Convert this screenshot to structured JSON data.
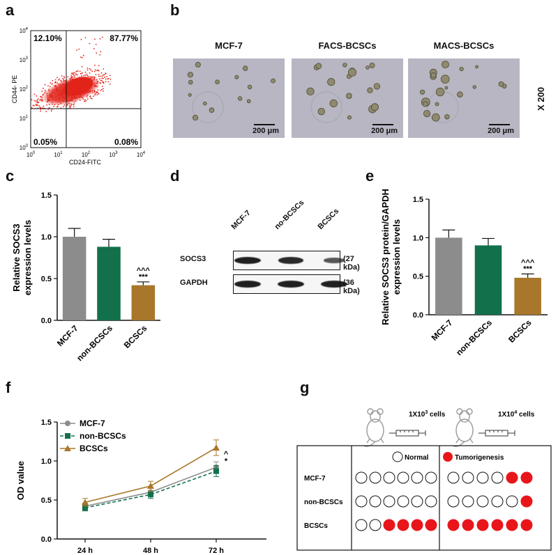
{
  "panels": {
    "a": "a",
    "b": "b",
    "c": "c",
    "d": "d",
    "e": "e",
    "f": "f",
    "g": "g"
  },
  "flow": {
    "quadrants": {
      "ul": "12.10%",
      "ur": "87.77%",
      "ll": "0.05%",
      "lr": "0.08%"
    },
    "xlabel": "CD24-FITC",
    "ylabel": "CD44- PE",
    "ticks": [
      "10^0",
      "10^1",
      "10^2",
      "10^3",
      "10^4"
    ]
  },
  "micro": {
    "titles": [
      "MCF-7",
      "FACS-BCSCs",
      "MACS-BCSCs"
    ],
    "scale_label": "200 μm",
    "magnification": "X 200"
  },
  "chart_data": [
    {
      "panel": "c",
      "type": "bar",
      "categories": [
        "MCF-7",
        "non-BCSCs",
        "BCSCs"
      ],
      "values": [
        1.0,
        0.88,
        0.42
      ],
      "errors": [
        0.1,
        0.09,
        0.04
      ],
      "ylabel": "Relative SOCS3 expression levels",
      "ylim": [
        0,
        1.5
      ],
      "yticks": [
        "0.0",
        "0.5",
        "1.0",
        "1.5"
      ],
      "annotations": [
        "",
        "",
        "^^^\n***"
      ],
      "colors": [
        "#8c8c8c",
        "#12704a",
        "#a8772b"
      ]
    },
    {
      "panel": "e",
      "type": "bar",
      "categories": [
        "MCF-7",
        "non-BCSCs",
        "BCSCs"
      ],
      "values": [
        1.0,
        0.9,
        0.48
      ],
      "errors": [
        0.1,
        0.09,
        0.05
      ],
      "ylabel": "Relative SOCS3 protein/GAPDH expression levels",
      "ylim": [
        0,
        1.5
      ],
      "yticks": [
        "0.0",
        "0.5",
        "1.0",
        "1.5"
      ],
      "annotations": [
        "",
        "",
        "^^^\n***"
      ],
      "colors": [
        "#8c8c8c",
        "#12704a",
        "#a8772b"
      ]
    },
    {
      "panel": "f",
      "type": "line",
      "categories": [
        "24 h",
        "48 h",
        "72 h"
      ],
      "ylabel": "OD value",
      "ylim": [
        0,
        1.5
      ],
      "yticks": [
        "0.0",
        "0.5",
        "1.0",
        "1.5"
      ],
      "legend_position": "top-left",
      "series": [
        {
          "name": "MCF-7",
          "values": [
            0.42,
            0.6,
            0.92
          ],
          "errors": [
            0.04,
            0.05,
            0.07
          ],
          "color": "#8c8c8c",
          "marker": "circle",
          "dash": false
        },
        {
          "name": "non-BCSCs",
          "values": [
            0.4,
            0.57,
            0.87
          ],
          "errors": [
            0.04,
            0.05,
            0.07
          ],
          "color": "#12704a",
          "marker": "square",
          "dash": true
        },
        {
          "name": "BCSCs",
          "values": [
            0.47,
            0.68,
            1.17
          ],
          "errors": [
            0.05,
            0.06,
            0.1
          ],
          "color": "#a8772b",
          "marker": "triangle",
          "dash": false
        }
      ],
      "annotations": [
        "^",
        "*"
      ]
    }
  ],
  "western": {
    "lanes": [
      "MCF-7",
      "no-BCSCs",
      "BCSCs"
    ],
    "rows": [
      {
        "label": "SOCS3",
        "kda": "(27 kDa)",
        "intensity": [
          1.0,
          0.9,
          0.5
        ]
      },
      {
        "label": "GAPDH",
        "kda": "(36 kDa)",
        "intensity": [
          1.0,
          1.0,
          1.0
        ]
      }
    ]
  },
  "tumor": {
    "doses": [
      {
        "base": "1X10",
        "exp": "3",
        "suffix": " cells"
      },
      {
        "base": "1X10",
        "exp": "4",
        "suffix": " cells"
      }
    ],
    "legend": {
      "normal": "Normal",
      "tumor": "Tumorigenesis"
    },
    "rows": [
      {
        "label": "MCF-7",
        "left": [
          0,
          0,
          0,
          0,
          0,
          0
        ],
        "right": [
          0,
          0,
          0,
          0,
          1,
          1
        ]
      },
      {
        "label": "non-BCSCs",
        "left": [
          0,
          0,
          0,
          0,
          0,
          0
        ],
        "right": [
          0,
          0,
          0,
          0,
          0,
          1
        ]
      },
      {
        "label": "BCSCs",
        "left": [
          0,
          0,
          1,
          1,
          1,
          1
        ],
        "right": [
          1,
          1,
          1,
          1,
          1,
          1
        ]
      }
    ],
    "tumor_color": "#e8161b"
  }
}
